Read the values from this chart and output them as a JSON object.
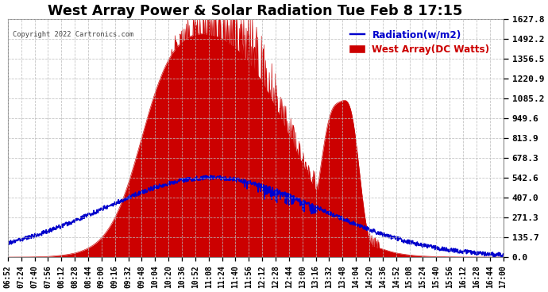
{
  "title": "West Array Power & Solar Radiation Tue Feb 8 17:15",
  "copyright": "Copyright 2022 Cartronics.com",
  "legend_radiation": "Radiation(w/m2)",
  "legend_west": "West Array(DC Watts)",
  "y_ticks": [
    0.0,
    135.7,
    271.3,
    407.0,
    542.6,
    678.3,
    813.9,
    949.6,
    1085.2,
    1220.9,
    1356.5,
    1492.2,
    1627.8
  ],
  "ymin": 0.0,
  "ymax": 1627.8,
  "background_color": "#ffffff",
  "plot_bg_color": "#ffffff",
  "grid_color": "#bbbbbb",
  "red_color": "#cc0000",
  "blue_color": "#0000cc",
  "title_fontsize": 11,
  "x_labels": [
    "06:52",
    "07:24",
    "07:40",
    "07:56",
    "08:12",
    "08:28",
    "08:44",
    "09:00",
    "09:16",
    "09:32",
    "09:48",
    "10:04",
    "10:20",
    "10:36",
    "10:52",
    "11:08",
    "11:24",
    "11:40",
    "11:56",
    "12:12",
    "12:28",
    "12:44",
    "13:00",
    "13:16",
    "13:32",
    "13:48",
    "14:04",
    "14:20",
    "14:36",
    "14:52",
    "15:08",
    "15:24",
    "15:40",
    "15:56",
    "16:12",
    "16:28",
    "16:44",
    "17:00"
  ]
}
